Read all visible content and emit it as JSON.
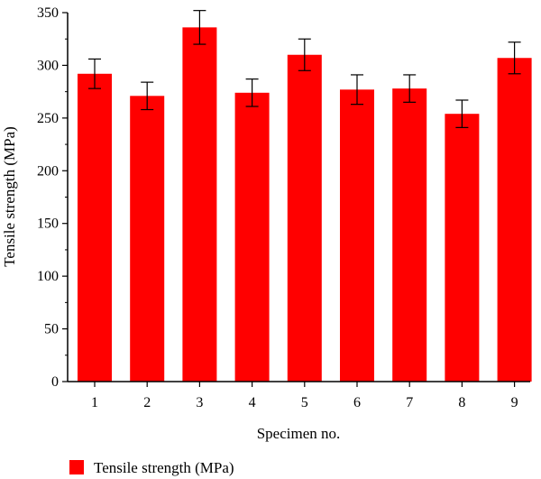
{
  "chart_data": {
    "type": "bar",
    "categories": [
      "1",
      "2",
      "3",
      "4",
      "5",
      "6",
      "7",
      "8",
      "9"
    ],
    "series": [
      {
        "name": "Tensile strength (MPa)",
        "values": [
          292,
          271,
          336,
          274,
          310,
          277,
          278,
          254,
          307
        ],
        "error": [
          14,
          13,
          16,
          13,
          15,
          14,
          13,
          13,
          15
        ],
        "color": "#ff0000"
      }
    ],
    "xlabel": "Specimen no.",
    "ylabel": "Tensile strength (MPa)",
    "ylim": [
      0,
      350
    ],
    "yticks": [
      0,
      50,
      100,
      150,
      200,
      250,
      300,
      350
    ],
    "ytick_labels": [
      "0",
      "50",
      "100",
      "150",
      "200",
      "250",
      "300",
      "350"
    ],
    "grid": false,
    "legend": {
      "label": "Tensile strength (MPa)",
      "position": "bottom-left"
    }
  }
}
